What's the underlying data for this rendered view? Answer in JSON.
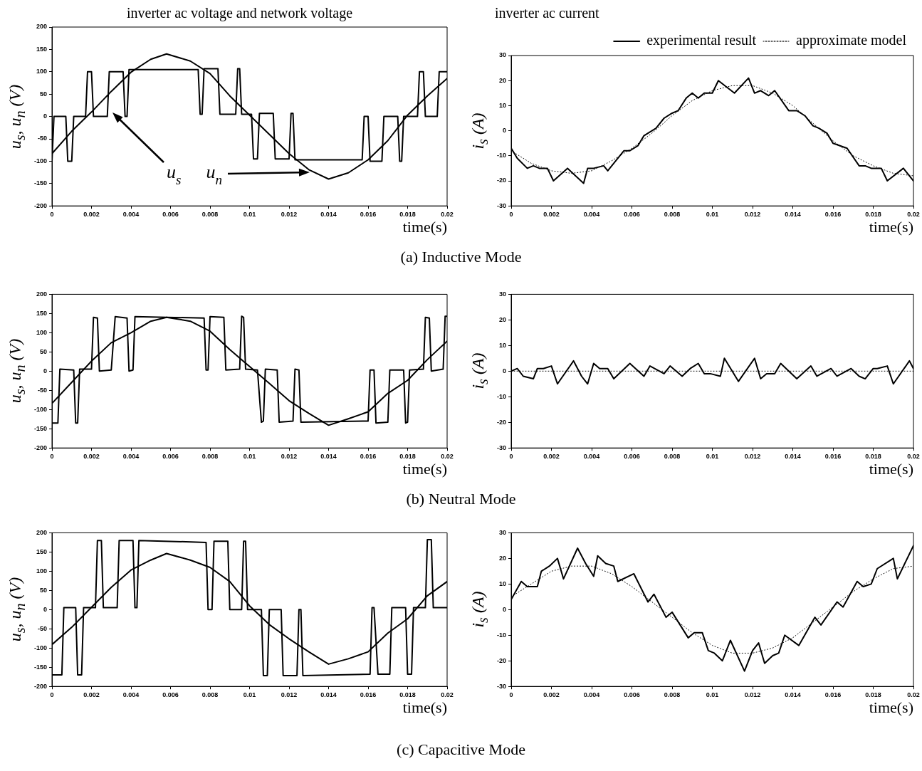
{
  "chart_data": [
    {
      "type": "line",
      "title": "inverter ac voltage and network voltage",
      "xlabel": "time(s)",
      "ylabel": "u$_{s}$, u$_{n}$ (V)",
      "xlim": [
        0,
        0.02
      ],
      "xticks": [
        0,
        0.002,
        0.004,
        0.006,
        0.008,
        0.01,
        0.012,
        0.014,
        0.016,
        0.018,
        0.02
      ],
      "ylim": [
        -200,
        200
      ],
      "yticks": [
        -200,
        -150,
        -100,
        -50,
        0,
        50,
        100,
        150,
        200
      ],
      "marker": "none",
      "annotations": [
        "u$_{s}$",
        "u$_{n}$",
        "(a) Inductive Mode"
      ],
      "series": [
        {
          "color": "#000000",
          "line_style": "solid",
          "x": [
            0,
            0.0001,
            0.0007,
            0.0008,
            0.001,
            0.0011,
            0.0017,
            0.0018,
            0.002,
            0.0021,
            0.0028,
            0.0029,
            0.0036,
            0.0037,
            0.0038,
            0.0039,
            0.0074,
            0.0075,
            0.0076,
            0.0077,
            0.0084,
            0.0085,
            0.0093,
            0.0094,
            0.0095,
            0.0096,
            0.0101,
            0.0102,
            0.0104,
            0.0105,
            0.0112,
            0.0113,
            0.012,
            0.0121,
            0.0122,
            0.0123,
            0.0157,
            0.0158,
            0.016,
            0.0161,
            0.0167,
            0.0168,
            0.0175,
            0.0176,
            0.0177,
            0.0178,
            0.0185,
            0.0186,
            0.0188,
            0.0189,
            0.0195,
            0.0196,
            0.02
          ],
          "values": [
            -100,
            0,
            0,
            -100,
            -100,
            0,
            0,
            100,
            100,
            0,
            0,
            100,
            100,
            0,
            0,
            105,
            105,
            5,
            5,
            107,
            107,
            5,
            5,
            107,
            107,
            5,
            5,
            -95,
            -95,
            7,
            7,
            -95,
            -95,
            7,
            7,
            -97,
            -97,
            0,
            0,
            -100,
            -100,
            0,
            0,
            -100,
            -100,
            0,
            0,
            100,
            100,
            0,
            0,
            100,
            100
          ]
        },
        {
          "color": "#000000",
          "line_style": "solid",
          "x": [
            0,
            0.001,
            0.002,
            0.003,
            0.004,
            0.005,
            0.0058,
            0.007,
            0.008,
            0.009,
            0.01,
            0.011,
            0.012,
            0.013,
            0.014,
            0.015,
            0.016,
            0.017,
            0.018,
            0.019,
            0.02
          ],
          "values": [
            -83,
            -33,
            10,
            56,
            99,
            128,
            140,
            124,
            96,
            46,
            3,
            -40,
            -83,
            -119,
            -140,
            -126,
            -97,
            -54,
            3,
            46,
            85
          ]
        }
      ]
    },
    {
      "type": "line",
      "title": "inverter ac current",
      "xlabel": "time(s)",
      "ylabel": "i$_{s}$ (A)",
      "xlim": [
        0,
        0.02
      ],
      "xticks": [
        0,
        0.002,
        0.004,
        0.006,
        0.008,
        0.01,
        0.012,
        0.014,
        0.016,
        0.018,
        0.02
      ],
      "ylim": [
        -30,
        30
      ],
      "yticks": [
        -30,
        -20,
        -10,
        0,
        10,
        20,
        30
      ],
      "marker": "none",
      "legend": "top right",
      "series": [
        {
          "name": "experimental result",
          "color": "#000000",
          "line_style": "solid",
          "x": [
            0,
            0.0003,
            0.0008,
            0.0011,
            0.0014,
            0.0018,
            0.0021,
            0.0028,
            0.0036,
            0.0038,
            0.0041,
            0.0046,
            0.0048,
            0.0056,
            0.0059,
            0.0063,
            0.0066,
            0.0072,
            0.0076,
            0.008,
            0.0083,
            0.0087,
            0.009,
            0.0093,
            0.0096,
            0.01,
            0.0103,
            0.0111,
            0.0118,
            0.0121,
            0.0124,
            0.0128,
            0.0131,
            0.0138,
            0.0142,
            0.0146,
            0.015,
            0.0153,
            0.0157,
            0.016,
            0.0167,
            0.0173,
            0.0176,
            0.0179,
            0.0184,
            0.0187,
            0.0195,
            0.02
          ],
          "values": [
            -7,
            -11,
            -15,
            -14,
            -15,
            -15,
            -20,
            -15,
            -21,
            -15,
            -15,
            -14,
            -16,
            -8,
            -8,
            -6,
            -2,
            1,
            5,
            7,
            8,
            13,
            15,
            13,
            15,
            15,
            20,
            15,
            21,
            15,
            16,
            14,
            16,
            8,
            8,
            6,
            2,
            1,
            -1,
            -5,
            -7,
            -14,
            -14,
            -15,
            -15,
            -20,
            -15,
            -20
          ]
        },
        {
          "name": "approximate model",
          "color": "#000000",
          "line_style": "dotted",
          "x": [
            0,
            0.001,
            0.002,
            0.003,
            0.004,
            0.005,
            0.006,
            0.007,
            0.008,
            0.009,
            0.01,
            0.011,
            0.012,
            0.013,
            0.014,
            0.015,
            0.016,
            0.017,
            0.018,
            0.019,
            0.02
          ],
          "values": [
            -8,
            -13,
            -16,
            -17,
            -16,
            -12,
            -7,
            -1,
            6,
            12,
            16,
            18,
            18,
            15,
            10,
            3,
            -4,
            -10,
            -14,
            -17,
            -18
          ]
        }
      ]
    },
    {
      "type": "line",
      "xlabel": "time(s)",
      "ylabel": "u$_{s}$, u$_{n}$ (V)",
      "xlim": [
        0,
        0.02
      ],
      "xticks": [
        0,
        0.002,
        0.004,
        0.006,
        0.008,
        0.01,
        0.012,
        0.014,
        0.016,
        0.018,
        0.02
      ],
      "ylim": [
        -200,
        200
      ],
      "yticks": [
        -200,
        -150,
        -100,
        -50,
        0,
        50,
        100,
        150,
        200
      ],
      "marker": "none",
      "annotations": [
        "(b) Neutral Mode"
      ],
      "series": [
        {
          "color": "#000000",
          "line_style": "solid",
          "x": [
            0,
            0.0003,
            0.0004,
            0.0011,
            0.0012,
            0.0013,
            0.0014,
            0.002,
            0.0021,
            0.0023,
            0.0024,
            0.003,
            0.0032,
            0.0038,
            0.0039,
            0.0041,
            0.0042,
            0.0077,
            0.0078,
            0.0079,
            0.008,
            0.0087,
            0.0088,
            0.0095,
            0.0096,
            0.0097,
            0.0098,
            0.0104,
            0.0106,
            0.0107,
            0.0108,
            0.0114,
            0.0115,
            0.0122,
            0.0123,
            0.0125,
            0.0126,
            0.016,
            0.0161,
            0.0163,
            0.0164,
            0.017,
            0.0171,
            0.0178,
            0.0179,
            0.018,
            0.0181,
            0.0188,
            0.0189,
            0.0191,
            0.0192,
            0.0198,
            0.0199,
            0.02
          ],
          "values": [
            -135,
            -135,
            5,
            3,
            -135,
            -135,
            5,
            5,
            140,
            138,
            0,
            3,
            142,
            138,
            0,
            3,
            142,
            138,
            3,
            3,
            142,
            140,
            3,
            5,
            143,
            140,
            5,
            3,
            -133,
            -130,
            5,
            3,
            -133,
            -130,
            5,
            3,
            -133,
            -130,
            3,
            3,
            -135,
            -133,
            3,
            3,
            -135,
            -133,
            3,
            5,
            140,
            138,
            0,
            5,
            143,
            143
          ]
        },
        {
          "color": "#000000",
          "line_style": "solid",
          "x": [
            0,
            0.001,
            0.002,
            0.003,
            0.004,
            0.005,
            0.0058,
            0.007,
            0.008,
            0.009,
            0.01,
            0.011,
            0.012,
            0.013,
            0.014,
            0.015,
            0.016,
            0.017,
            0.018,
            0.019,
            0.02
          ],
          "values": [
            -84,
            -29,
            26,
            74,
            100,
            130,
            140,
            130,
            104,
            56,
            12,
            -32,
            -77,
            -110,
            -141,
            -124,
            -106,
            -58,
            -24,
            30,
            78
          ]
        }
      ]
    },
    {
      "type": "line",
      "xlabel": "time(s)",
      "ylabel": "i$_{s}$ (A)",
      "xlim": [
        0,
        0.02
      ],
      "xticks": [
        0,
        0.002,
        0.004,
        0.006,
        0.008,
        0.01,
        0.012,
        0.014,
        0.016,
        0.018,
        0.02
      ],
      "ylim": [
        -30,
        30
      ],
      "yticks": [
        -30,
        -20,
        -10,
        0,
        10,
        20,
        30
      ],
      "marker": "none",
      "series": [
        {
          "color": "#000000",
          "line_style": "solid",
          "x": [
            0,
            0.0003,
            0.0006,
            0.0011,
            0.0013,
            0.0016,
            0.002,
            0.0023,
            0.0031,
            0.0035,
            0.0038,
            0.0041,
            0.0044,
            0.0048,
            0.0051,
            0.0059,
            0.0066,
            0.0069,
            0.0076,
            0.0079,
            0.0085,
            0.0089,
            0.0093,
            0.0096,
            0.0099,
            0.0104,
            0.0106,
            0.0113,
            0.0121,
            0.0124,
            0.0127,
            0.0131,
            0.0134,
            0.0142,
            0.0149,
            0.0152,
            0.0159,
            0.0162,
            0.0169,
            0.0173,
            0.0176,
            0.018,
            0.0182,
            0.0187,
            0.019,
            0.0198,
            0.02
          ],
          "values": [
            0,
            1,
            -2,
            -3,
            1,
            1,
            2,
            -5,
            4,
            -2,
            -5,
            3,
            1,
            1,
            -3,
            3,
            -2,
            2,
            -1,
            2,
            -2,
            1,
            3,
            -1,
            -1,
            -2,
            5,
            -4,
            5,
            -3,
            -1,
            -1,
            3,
            -3,
            2,
            -2,
            1,
            -2,
            1,
            -2,
            -3,
            1,
            1,
            2,
            -5,
            4,
            1
          ]
        },
        {
          "color": "#000000",
          "line_style": "dotted",
          "x": [
            0,
            0.02
          ],
          "values": [
            0,
            0
          ]
        }
      ]
    },
    {
      "type": "line",
      "xlabel": "time(s)",
      "ylabel": "u$_{s}$, u$_{n}$ (V)",
      "xlim": [
        0,
        0.02
      ],
      "xticks": [
        0,
        0.002,
        0.004,
        0.006,
        0.008,
        0.01,
        0.012,
        0.014,
        0.016,
        0.018,
        0.02
      ],
      "ylim": [
        -200,
        200
      ],
      "yticks": [
        -200,
        -150,
        -100,
        -50,
        0,
        50,
        100,
        150,
        200
      ],
      "marker": "none",
      "annotations": [
        "(c) Capacitive Mode"
      ],
      "series": [
        {
          "color": "#000000",
          "line_style": "solid",
          "x": [
            0,
            0.0005,
            0.0006,
            0.0012,
            0.0013,
            0.0015,
            0.0016,
            0.0022,
            0.0023,
            0.0025,
            0.0026,
            0.0033,
            0.0034,
            0.0041,
            0.0042,
            0.0043,
            0.0044,
            0.0078,
            0.0079,
            0.0081,
            0.0082,
            0.0089,
            0.009,
            0.0096,
            0.0097,
            0.0098,
            0.0099,
            0.0106,
            0.0107,
            0.0109,
            0.011,
            0.0116,
            0.0117,
            0.0124,
            0.0125,
            0.0126,
            0.0127,
            0.0161,
            0.0162,
            0.0163,
            0.0165,
            0.0171,
            0.0172,
            0.0179,
            0.018,
            0.0182,
            0.0183,
            0.0189,
            0.019,
            0.0192,
            0.0193,
            0.02
          ],
          "values": [
            -170,
            -170,
            5,
            5,
            -170,
            -170,
            5,
            5,
            180,
            180,
            5,
            5,
            180,
            180,
            5,
            5,
            180,
            175,
            0,
            0,
            178,
            178,
            0,
            0,
            178,
            178,
            0,
            0,
            -172,
            -172,
            0,
            0,
            -172,
            -172,
            0,
            0,
            -172,
            -168,
            5,
            5,
            -168,
            -168,
            5,
            5,
            -168,
            -168,
            5,
            5,
            182,
            182,
            5,
            5
          ]
        },
        {
          "color": "#000000",
          "line_style": "solid",
          "x": [
            0,
            0.001,
            0.002,
            0.003,
            0.004,
            0.005,
            0.0058,
            0.007,
            0.008,
            0.009,
            0.01,
            0.011,
            0.012,
            0.013,
            0.014,
            0.015,
            0.016,
            0.017,
            0.018,
            0.019,
            0.02
          ],
          "values": [
            -91,
            -46,
            6,
            58,
            103,
            129,
            146,
            129,
            110,
            73,
            10,
            -39,
            -76,
            -110,
            -142,
            -128,
            -110,
            -61,
            -24,
            36,
            73
          ]
        }
      ]
    },
    {
      "type": "line",
      "xlabel": "time(s)",
      "ylabel": "i$_{s}$ (A)",
      "xlim": [
        0,
        0.02
      ],
      "xticks": [
        0,
        0.002,
        0.004,
        0.006,
        0.008,
        0.01,
        0.012,
        0.014,
        0.016,
        0.018,
        0.02
      ],
      "ylim": [
        -30,
        30
      ],
      "yticks": [
        -30,
        -20,
        -10,
        0,
        10,
        20,
        30
      ],
      "marker": "none",
      "series": [
        {
          "color": "#000000",
          "line_style": "solid",
          "x": [
            0,
            0.0005,
            0.0008,
            0.0013,
            0.0015,
            0.0019,
            0.0023,
            0.0026,
            0.0033,
            0.0037,
            0.0041,
            0.0043,
            0.0047,
            0.0051,
            0.0053,
            0.0061,
            0.0068,
            0.0071,
            0.0077,
            0.008,
            0.0088,
            0.0091,
            0.0095,
            0.0098,
            0.0101,
            0.0105,
            0.0109,
            0.0116,
            0.012,
            0.0123,
            0.0126,
            0.013,
            0.0133,
            0.0136,
            0.0143,
            0.0151,
            0.0154,
            0.0162,
            0.0165,
            0.0172,
            0.0175,
            0.0179,
            0.0182,
            0.019,
            0.0192,
            0.02
          ],
          "values": [
            4,
            11,
            9,
            9,
            15,
            17,
            20,
            12,
            24,
            18,
            13,
            21,
            18,
            17,
            11,
            14,
            3,
            6,
            -3,
            -1,
            -11,
            -9,
            -9,
            -16,
            -17,
            -20,
            -12,
            -24,
            -16,
            -13,
            -21,
            -18,
            -17,
            -10,
            -14,
            -3,
            -6,
            3,
            1,
            11,
            9,
            10,
            16,
            20,
            12,
            25
          ]
        },
        {
          "color": "#000000",
          "line_style": "dotted",
          "x": [
            0,
            0.001,
            0.002,
            0.003,
            0.004,
            0.005,
            0.006,
            0.007,
            0.008,
            0.009,
            0.01,
            0.011,
            0.012,
            0.013,
            0.014,
            0.015,
            0.016,
            0.017,
            0.018,
            0.019,
            0.02
          ],
          "values": [
            5,
            10,
            15,
            17,
            17,
            14,
            9,
            3,
            -3,
            -9,
            -14,
            -17,
            -17,
            -15,
            -11,
            -5,
            1,
            7,
            12,
            16,
            17
          ]
        }
      ]
    }
  ]
}
